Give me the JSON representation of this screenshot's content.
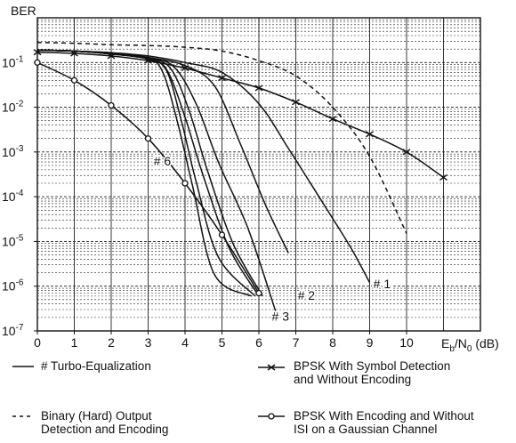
{
  "chart_data": {
    "type": "line",
    "ylabel": "BER",
    "xlabel_main": "E",
    "xlabel_sub1": "b",
    "xlabel_mid": "/N",
    "xlabel_sub2": "0",
    "xlabel_unit": " (dB)",
    "x_ticks": [
      "0",
      "1",
      "2",
      "3",
      "4",
      "5",
      "6",
      "7",
      "8",
      "9",
      "10"
    ],
    "y_ticks": [
      {
        "base": "10",
        "exp": "-1",
        "value": 0.1
      },
      {
        "base": "10",
        "exp": "-2",
        "value": 0.01
      },
      {
        "base": "10",
        "exp": "-3",
        "value": 0.001
      },
      {
        "base": "10",
        "exp": "-4",
        "value": 0.0001
      },
      {
        "base": "10",
        "exp": "-5",
        "value": 1e-05
      },
      {
        "base": "10",
        "exp": "-6",
        "value": 1e-06
      },
      {
        "base": "10",
        "exp": "-7",
        "value": 1e-07
      }
    ],
    "xlim": [
      0,
      12
    ],
    "ylim": [
      1e-07,
      1
    ],
    "y_scale": "log",
    "grid": true,
    "annotations": [
      {
        "text": "# 1",
        "x": 9.1,
        "y": 9e-07
      },
      {
        "text": "# 2",
        "x": 7.05,
        "y": 5e-07
      },
      {
        "text": "# 3",
        "x": 6.35,
        "y": 1.7e-07
      },
      {
        "text": "# 6",
        "x": 3.15,
        "y": 0.0005
      }
    ],
    "series": [
      {
        "style": "solid",
        "points": [
          [
            0,
            0.19
          ],
          [
            1,
            0.18
          ],
          [
            2,
            0.155
          ],
          [
            3,
            0.12
          ],
          [
            3.4,
            0.06
          ],
          [
            3.8,
            0.0045
          ],
          [
            4.2,
            0.00018
          ],
          [
            4.8,
            1.8e-06
          ],
          [
            5.8,
            6e-07
          ]
        ]
      },
      {
        "style": "solid",
        "points": [
          [
            0,
            0.19
          ],
          [
            1,
            0.18
          ],
          [
            2,
            0.155
          ],
          [
            3,
            0.12
          ],
          [
            3.5,
            0.065
          ],
          [
            3.9,
            0.005
          ],
          [
            4.3,
            0.00022
          ],
          [
            4.9,
            4.5e-06
          ],
          [
            5.9,
            6e-07
          ]
        ]
      },
      {
        "style": "solid",
        "points": [
          [
            0,
            0.19
          ],
          [
            1,
            0.18
          ],
          [
            2,
            0.155
          ],
          [
            3,
            0.12
          ],
          [
            3.5,
            0.07
          ],
          [
            4,
            0.006
          ],
          [
            4.5,
            0.00028
          ],
          [
            5.2,
            7e-06
          ],
          [
            6,
            6e-07
          ]
        ]
      },
      {
        "style": "solid",
        "points": [
          [
            0,
            0.19
          ],
          [
            1,
            0.18
          ],
          [
            2,
            0.155
          ],
          [
            3,
            0.125
          ],
          [
            3.6,
            0.075
          ],
          [
            4.1,
            0.009
          ],
          [
            4.6,
            0.0004
          ],
          [
            5.3,
            9e-06
          ],
          [
            6.1,
            6e-07
          ]
        ]
      },
      {
        "style": "solid",
        "points": [
          [
            0,
            0.19
          ],
          [
            1,
            0.18
          ],
          [
            2,
            0.16
          ],
          [
            3,
            0.13
          ],
          [
            3.7,
            0.08
          ],
          [
            4.3,
            0.012
          ],
          [
            4.9,
            0.0006
          ],
          [
            5.7,
            2e-05
          ],
          [
            6.45,
            2.8e-07
          ]
        ]
      },
      {
        "style": "solid",
        "points": [
          [
            0,
            0.19
          ],
          [
            1,
            0.18
          ],
          [
            2,
            0.165
          ],
          [
            3,
            0.13
          ],
          [
            4,
            0.085
          ],
          [
            4.8,
            0.03
          ],
          [
            5.5,
            0.0015
          ],
          [
            6.2,
            6e-05
          ],
          [
            6.8,
            5.5e-06
          ]
        ]
      },
      {
        "style": "solid",
        "points": [
          [
            0,
            0.19
          ],
          [
            1,
            0.18
          ],
          [
            2,
            0.165
          ],
          [
            3,
            0.14
          ],
          [
            4,
            0.1
          ],
          [
            5,
            0.06
          ],
          [
            6,
            0.012
          ],
          [
            6.8,
            0.0012
          ],
          [
            7.7,
            8e-05
          ],
          [
            8.5,
            7e-06
          ],
          [
            9,
            1.2e-06
          ]
        ]
      },
      {
        "style": "dashed",
        "points": [
          [
            0,
            0.28
          ],
          [
            1,
            0.27
          ],
          [
            2,
            0.25
          ],
          [
            3,
            0.24
          ],
          [
            4,
            0.22
          ],
          [
            5,
            0.18
          ],
          [
            6,
            0.11
          ],
          [
            7,
            0.05
          ],
          [
            8,
            0.01
          ],
          [
            9,
            0.0008
          ],
          [
            10,
            1.5e-05
          ]
        ]
      },
      {
        "style": "cross",
        "points": [
          [
            0,
            0.17
          ],
          [
            1,
            0.16
          ],
          [
            2,
            0.14
          ],
          [
            3,
            0.11
          ],
          [
            4,
            0.075
          ],
          [
            5,
            0.045
          ],
          [
            6,
            0.027
          ],
          [
            7,
            0.013
          ],
          [
            8,
            0.0055
          ],
          [
            9,
            0.0025
          ],
          [
            10,
            0.001
          ],
          [
            11,
            0.00027
          ]
        ]
      },
      {
        "style": "circle",
        "points": [
          [
            0,
            0.1
          ],
          [
            1,
            0.04
          ],
          [
            2,
            0.011
          ],
          [
            3,
            0.002
          ],
          [
            4,
            0.0002
          ],
          [
            5,
            1.4e-05
          ],
          [
            6,
            7e-07
          ]
        ]
      }
    ]
  },
  "legend": {
    "turbo_label": "# Turbo-Equalization",
    "hard_label": "Binary (Hard) Output\nDetection and Encoding",
    "bpsk_symbol_label": "BPSK With Symbol Detection\nand Without Encoding",
    "bpsk_gauss_label": "BPSK With Encoding and Without\nISI on a Gaussian Channel"
  }
}
